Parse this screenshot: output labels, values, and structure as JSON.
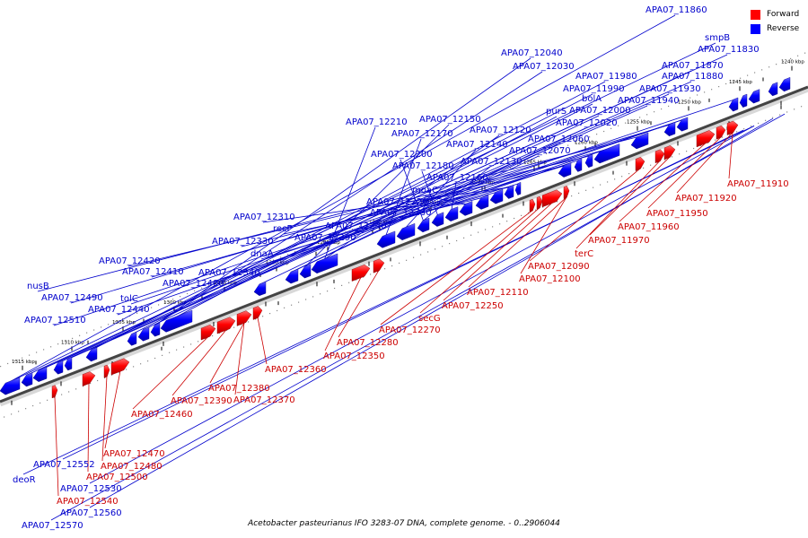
{
  "legend": {
    "forward_label": "Forward",
    "reverse_label": "Reverse",
    "forward_color": "#ff0000",
    "reverse_color": "#0000ff"
  },
  "caption": "Acetobacter pasteurianus IFO 3283-07 DNA, complete genome. - 0..2906044",
  "ticks": [
    "1240 kbp",
    "1245 kbp",
    "1250 kbp",
    "1255 kbp",
    "1260 kbp",
    "1265 kbp",
    "1270 kbp",
    "1275 kbp",
    "1280 kbp",
    "1285 kbp",
    "1290 kbp",
    "1295 kbp",
    "1300 kbp",
    "1305 kbp",
    "1310 kbp",
    "1315 kbp"
  ],
  "reverse_genes": [
    "APA07_11860",
    "smpB",
    "APA07_11830",
    "APA07_11870",
    "APA07_11880",
    "APA07_11930",
    "APA07_11940",
    "APA07_11980",
    "APA07_11990",
    "bolA",
    "APA07_12000",
    "APA07_12040",
    "APA07_12030",
    "purS",
    "APA07_12020",
    "APA07_12060",
    "APA07_12070",
    "APA07_12150",
    "APA07_12120",
    "APA07_12210",
    "APA07_12170",
    "APA07_12140",
    "APA07_12130",
    "APA07_12200",
    "APA07_12180",
    "APA07_12160",
    "moaC",
    "APA07_12220",
    "APA07_12230",
    "APA07_12240",
    "APA07_12310",
    "recF",
    "APA07_12290",
    "APA07_12330",
    "dnaA",
    "APA07_12340",
    "APA07_12420",
    "APA07_12410",
    "APA07_12400",
    "nusB",
    "APA07_12490",
    "tolC",
    "APA07_12440",
    "APA07_12510",
    "APA07_12552",
    "deoR",
    "APA07_12530",
    "APA07_12560",
    "APA07_12570"
  ],
  "forward_genes": [
    "APA07_11910",
    "APA07_11920",
    "APA07_11950",
    "APA07_11960",
    "APA07_11970",
    "terC",
    "APA07_12090",
    "APA07_12100",
    "APA07_12110",
    "APA07_12250",
    "secG",
    "APA07_12270",
    "APA07_12280",
    "APA07_12350",
    "APA07_12360",
    "APA07_12380",
    "APA07_12370",
    "APA07_12390",
    "APA07_12460",
    "APA07_12470",
    "APA07_12480",
    "APA07_12500",
    "APA07_12540"
  ]
}
